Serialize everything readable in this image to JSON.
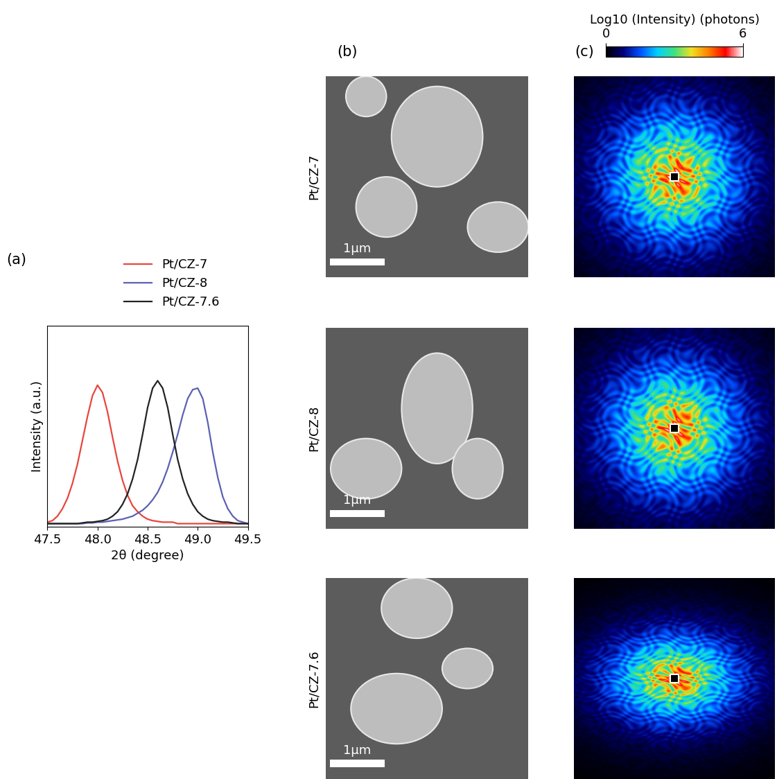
{
  "chart_data": {
    "type": "line",
    "panel_label": "(a)",
    "xlabel": "2θ (degree)",
    "ylabel": "Intensity (a.u.)",
    "x": [
      47.5,
      47.55,
      47.6,
      47.65,
      47.7,
      47.75,
      47.8,
      47.85,
      47.9,
      47.95,
      48.0,
      48.05,
      48.1,
      48.15,
      48.2,
      48.25,
      48.3,
      48.35,
      48.4,
      48.45,
      48.5,
      48.55,
      48.6,
      48.65,
      48.7,
      48.75,
      48.8,
      48.85,
      48.9,
      48.95,
      49.0,
      49.05,
      49.1,
      49.15,
      49.2,
      49.25,
      49.3,
      49.35,
      49.4,
      49.45,
      49.5
    ],
    "series": [
      {
        "name": "Pt/CZ-7",
        "color": "#e8453c",
        "values": [
          0.03,
          0.04,
          0.07,
          0.12,
          0.19,
          0.29,
          0.42,
          0.58,
          0.74,
          0.88,
          0.95,
          0.9,
          0.77,
          0.6,
          0.44,
          0.31,
          0.21,
          0.14,
          0.1,
          0.07,
          0.05,
          0.04,
          0.035,
          0.03,
          0.03,
          0.03,
          0.02,
          0.02,
          0.02,
          0.02,
          0.02,
          0.02,
          0.02,
          0.02,
          0.02,
          0.02,
          0.02,
          0.02,
          0.02,
          0.02,
          0.02
        ]
      },
      {
        "name": "Pt/CZ-8",
        "color": "#5b60b3",
        "values": [
          0.02,
          0.02,
          0.02,
          0.02,
          0.02,
          0.02,
          0.02,
          0.02,
          0.025,
          0.025,
          0.03,
          0.03,
          0.035,
          0.04,
          0.045,
          0.05,
          0.06,
          0.07,
          0.09,
          0.11,
          0.14,
          0.18,
          0.23,
          0.3,
          0.39,
          0.5,
          0.62,
          0.75,
          0.86,
          0.92,
          0.93,
          0.86,
          0.7,
          0.5,
          0.33,
          0.2,
          0.12,
          0.07,
          0.04,
          0.03,
          0.02
        ]
      },
      {
        "name": "Pt/CZ-7.6",
        "color": "#222222",
        "values": [
          0.02,
          0.02,
          0.02,
          0.02,
          0.02,
          0.02,
          0.02,
          0.025,
          0.03,
          0.03,
          0.035,
          0.04,
          0.05,
          0.07,
          0.1,
          0.15,
          0.22,
          0.32,
          0.45,
          0.62,
          0.8,
          0.93,
          0.98,
          0.93,
          0.8,
          0.62,
          0.45,
          0.32,
          0.22,
          0.15,
          0.1,
          0.07,
          0.05,
          0.04,
          0.035,
          0.03,
          0.03,
          0.025,
          0.02,
          0.02,
          0.02
        ]
      }
    ],
    "xlim": [
      47.5,
      49.5
    ],
    "xticks": [
      47.5,
      48.0,
      48.5,
      49.0,
      49.5
    ],
    "ylim": [
      0,
      1.35
    ],
    "tick_labels": "x",
    "grid": false,
    "legend": "lower center"
  },
  "sem_images": {
    "panel_label": "(b)",
    "rows": [
      {
        "sample": "Pt/CZ-7",
        "scale_bar": "1μm"
      },
      {
        "sample": "Pt/CZ-8",
        "scale_bar": "1μm"
      },
      {
        "sample": "Pt/CZ-7.6",
        "scale_bar": "1μm"
      }
    ]
  },
  "diffraction": {
    "panel_label": "(c)",
    "colorbar": {
      "label": "Log10 (Intensity) (photons)",
      "range": [
        0,
        6
      ],
      "ticks": [
        0,
        6
      ]
    }
  }
}
